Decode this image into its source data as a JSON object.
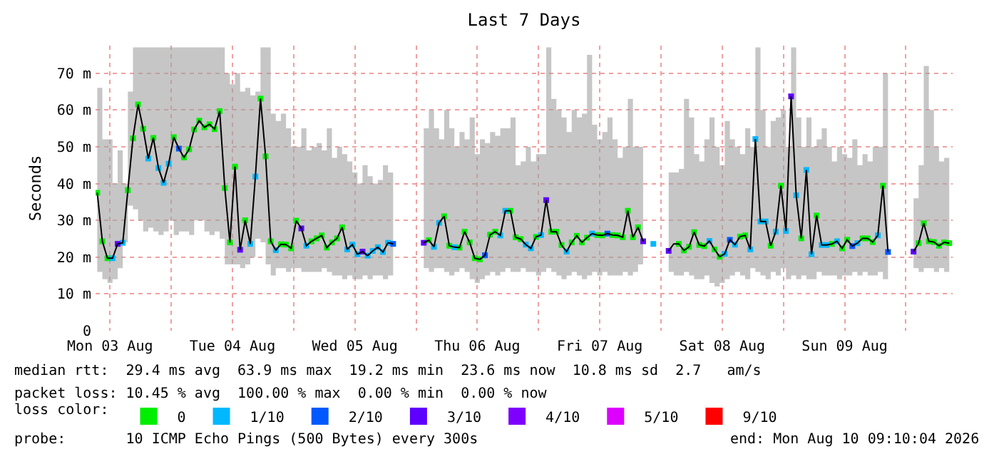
{
  "chart_data": {
    "type": "line",
    "title": "Last 7 Days",
    "ylabel": "Seconds",
    "legend_title": "loss color:",
    "x": [
      "2026-08-03T09:30",
      "2026-08-03T10:30",
      "2026-08-03T11:30",
      "2026-08-03T12:30",
      "2026-08-03T13:30",
      "2026-08-03T14:30",
      "2026-08-03T15:30",
      "2026-08-03T16:30",
      "2026-08-03T17:30",
      "2026-08-03T18:30",
      "2026-08-03T19:30",
      "2026-08-03T20:30",
      "2026-08-03T21:30",
      "2026-08-03T22:30",
      "2026-08-03T23:30",
      "2026-08-04T00:30",
      "2026-08-04T01:30",
      "2026-08-04T02:30",
      "2026-08-04T03:30",
      "2026-08-04T04:30",
      "2026-08-04T05:30",
      "2026-08-04T06:30",
      "2026-08-04T07:30",
      "2026-08-04T08:30",
      "2026-08-04T09:30",
      "2026-08-04T10:30",
      "2026-08-04T11:30",
      "2026-08-04T12:30",
      "2026-08-04T13:30",
      "2026-08-04T14:30",
      "2026-08-04T15:30",
      "2026-08-04T16:30",
      "2026-08-04T17:30",
      "2026-08-04T18:30",
      "2026-08-04T19:30",
      "2026-08-04T20:30",
      "2026-08-04T21:30",
      "2026-08-04T22:30",
      "2026-08-04T23:30",
      "2026-08-05T00:30",
      "2026-08-05T01:30",
      "2026-08-05T02:30",
      "2026-08-05T03:30",
      "2026-08-05T04:30",
      "2026-08-05T05:30",
      "2026-08-05T06:30",
      "2026-08-05T07:30",
      "2026-08-05T08:30",
      "2026-08-05T09:30",
      "2026-08-05T10:30",
      "2026-08-05T11:30",
      "2026-08-05T12:30",
      "2026-08-05T13:30",
      "2026-08-05T14:30",
      "2026-08-05T15:30",
      "2026-08-05T16:30",
      "2026-08-05T17:30",
      "2026-08-05T18:30",
      "2026-08-05T19:30",
      "2026-08-05T20:30",
      "2026-08-05T21:30",
      "2026-08-05T22:30",
      "2026-08-05T23:30",
      "2026-08-06T00:30",
      "2026-08-06T01:30",
      "2026-08-06T02:30",
      "2026-08-06T03:30",
      "2026-08-06T04:30",
      "2026-08-06T05:30",
      "2026-08-06T06:30",
      "2026-08-06T07:30",
      "2026-08-06T08:30",
      "2026-08-06T09:30",
      "2026-08-06T10:30",
      "2026-08-06T11:30",
      "2026-08-06T12:30",
      "2026-08-06T13:30",
      "2026-08-06T14:30",
      "2026-08-06T15:30",
      "2026-08-06T16:30",
      "2026-08-06T17:30",
      "2026-08-06T18:30",
      "2026-08-06T19:30",
      "2026-08-06T20:30",
      "2026-08-06T21:30",
      "2026-08-06T22:30",
      "2026-08-06T23:30",
      "2026-08-07T00:30",
      "2026-08-07T01:30",
      "2026-08-07T02:30",
      "2026-08-07T03:30",
      "2026-08-07T04:30",
      "2026-08-07T05:30",
      "2026-08-07T06:30",
      "2026-08-07T07:30",
      "2026-08-07T08:30",
      "2026-08-07T09:30",
      "2026-08-07T10:30",
      "2026-08-07T11:30",
      "2026-08-07T12:30",
      "2026-08-07T13:30",
      "2026-08-07T14:30",
      "2026-08-07T15:30",
      "2026-08-07T16:30",
      "2026-08-07T17:30",
      "2026-08-07T18:30",
      "2026-08-07T19:30",
      "2026-08-07T20:30",
      "2026-08-07T21:30",
      "2026-08-07T22:30",
      "2026-08-07T23:30",
      "2026-08-08T00:30",
      "2026-08-08T01:30",
      "2026-08-08T02:30",
      "2026-08-08T03:30",
      "2026-08-08T04:30",
      "2026-08-08T05:30",
      "2026-08-08T06:30",
      "2026-08-08T07:30",
      "2026-08-08T08:30",
      "2026-08-08T09:30",
      "2026-08-08T10:30",
      "2026-08-08T11:30",
      "2026-08-08T12:30",
      "2026-08-08T13:30",
      "2026-08-08T14:30",
      "2026-08-08T15:30",
      "2026-08-08T16:30",
      "2026-08-08T17:30",
      "2026-08-08T18:30",
      "2026-08-08T19:30",
      "2026-08-08T20:30",
      "2026-08-08T21:30",
      "2026-08-08T22:30",
      "2026-08-08T23:30",
      "2026-08-09T00:30",
      "2026-08-09T01:30",
      "2026-08-09T02:30",
      "2026-08-09T03:30",
      "2026-08-09T04:30",
      "2026-08-09T05:30",
      "2026-08-09T06:30",
      "2026-08-09T07:30",
      "2026-08-09T08:30",
      "2026-08-09T09:30",
      "2026-08-09T10:30",
      "2026-08-09T11:30",
      "2026-08-09T12:30",
      "2026-08-09T13:30",
      "2026-08-09T14:30",
      "2026-08-09T15:30",
      "2026-08-09T16:30",
      "2026-08-09T17:30",
      "2026-08-09T18:30",
      "2026-08-09T19:30",
      "2026-08-09T20:30",
      "2026-08-09T21:30",
      "2026-08-09T22:30",
      "2026-08-09T23:30",
      "2026-08-10T00:30",
      "2026-08-10T01:30",
      "2026-08-10T02:30",
      "2026-08-10T03:30",
      "2026-08-10T04:30",
      "2026-08-10T05:30",
      "2026-08-10T06:30",
      "2026-08-10T07:30",
      "2026-08-10T08:30"
    ],
    "xlim": [
      "2026-08-03T09:10",
      "2026-08-10T09:10"
    ],
    "xticks": [
      {
        "value": "2026-08-03T12:00",
        "label": "Mon 03 Aug"
      },
      {
        "value": "2026-08-04T00:00",
        "label": null
      },
      {
        "value": "2026-08-04T12:00",
        "label": "Tue 04 Aug"
      },
      {
        "value": "2026-08-05T00:00",
        "label": null
      },
      {
        "value": "2026-08-05T12:00",
        "label": "Wed 05 Aug"
      },
      {
        "value": "2026-08-06T00:00",
        "label": null
      },
      {
        "value": "2026-08-06T12:00",
        "label": "Thu 06 Aug"
      },
      {
        "value": "2026-08-07T00:00",
        "label": null
      },
      {
        "value": "2026-08-07T12:00",
        "label": "Fri 07 Aug"
      },
      {
        "value": "2026-08-08T00:00",
        "label": null
      },
      {
        "value": "2026-08-08T12:00",
        "label": "Sat 08 Aug"
      },
      {
        "value": "2026-08-09T00:00",
        "label": null
      },
      {
        "value": "2026-08-09T12:00",
        "label": "Sun 09 Aug"
      },
      {
        "value": "2026-08-10T00:00",
        "label": null
      }
    ],
    "ylim": [
      0,
      77.5
    ],
    "yticks": [
      0,
      {
        "value": 10,
        "label": "10 m"
      },
      {
        "value": 20,
        "label": "20 m"
      },
      {
        "value": 30,
        "label": "30 m"
      },
      {
        "value": 40,
        "label": "40 m"
      },
      {
        "value": 50,
        "label": "50 m"
      },
      {
        "value": 60,
        "label": "60 m"
      },
      {
        "value": 70,
        "label": "70 m"
      }
    ],
    "grid": true,
    "legend": "bottom",
    "marker": "square",
    "series": [
      {
        "color": "#000000",
        "marker": "none",
        "values": [
          37.5,
          24.3,
          19.7,
          19.7,
          23.6,
          23.9,
          38.2,
          52.3,
          61.5,
          54.9,
          46.8,
          52.4,
          44.2,
          40.2,
          45.4,
          52.6,
          49.5,
          47.1,
          49.3,
          54.7,
          57.1,
          55.3,
          56.1,
          54.8,
          59.7,
          38.8,
          24,
          44.6,
          22,
          30,
          23.6,
          41.9,
          63.1,
          47.4,
          24.3,
          21.9,
          23.5,
          23.4,
          22.4,
          29.9,
          27.8,
          23.1,
          24.3,
          25.1,
          25.9,
          22.6,
          24,
          25.1,
          28.1,
          22.1,
          23.4,
          20.8,
          21.5,
          20.4,
          21.7,
          22.7,
          21.4,
          23.9,
          23.6,
          null,
          null,
          null,
          null,
          null,
          23.9,
          24.6,
          22.8,
          29.3,
          31.1,
          23.1,
          22.7,
          22.6,
          26.9,
          24,
          19.7,
          19.4,
          20.5,
          26.1,
          26.9,
          25.9,
          32.6,
          32.6,
          25.4,
          24.9,
          23.4,
          22.4,
          25.5,
          26,
          35.5,
          26.9,
          26.9,
          23.3,
          21.5,
          24,
          25.8,
          24,
          25.3,
          26.4,
          26,
          25.9,
          26.4,
          26,
          25.9,
          25.4,
          32.6,
          25.4,
          28.1,
          24.3,
          null,
          null,
          null,
          null,
          21.7,
          23.6,
          23.6,
          21.8,
          22.8,
          26.8,
          23.3,
          23,
          24.4,
          22.1,
          20.1,
          20.9,
          24.7,
          23.4,
          25.6,
          25.9,
          22.1,
          52.1,
          29.7,
          29.7,
          23.1,
          26.9,
          39.4,
          27.1,
          63.7,
          36.8,
          25.1,
          43.7,
          20.8,
          31.3,
          23.3,
          23.3,
          23.6,
          24.3,
          22.4,
          24.7,
          23,
          23.8,
          25.1,
          25.1,
          24.1,
          25.9,
          39.4,
          21.4,
          null,
          null,
          null,
          null,
          21.5,
          23.8,
          29.2,
          24.3,
          24.1,
          23.1,
          24,
          23.8
        ],
        "upper": [
          66,
          52,
          52,
          40,
          49,
          40,
          65,
          77,
          77,
          77,
          77,
          77,
          77,
          77,
          77,
          77,
          77,
          77,
          77,
          77,
          77,
          77,
          77,
          77,
          77,
          70,
          67,
          70,
          65,
          66,
          64,
          65,
          77,
          77,
          59,
          57,
          59,
          55,
          50,
          50,
          55,
          49,
          50,
          51,
          49,
          55,
          47,
          50,
          48,
          46,
          43,
          40,
          45,
          42,
          40,
          41,
          45,
          43,
          42,
          null,
          null,
          null,
          null,
          null,
          55,
          60,
          55,
          52,
          60,
          55,
          50,
          54,
          52,
          58,
          48,
          52,
          51,
          54,
          53,
          55,
          55,
          58,
          45,
          46,
          50,
          46,
          48,
          48,
          77,
          63,
          60,
          58,
          54,
          60,
          58,
          59,
          75,
          56,
          52,
          54,
          58,
          52,
          47,
          50,
          63,
          50,
          50,
          40,
          null,
          null,
          null,
          null,
          43,
          43,
          44,
          63,
          58,
          48,
          46,
          52,
          58,
          50,
          45,
          57,
          52,
          50,
          48,
          55,
          50,
          77,
          60,
          50,
          57,
          58,
          60,
          50,
          77,
          58,
          50,
          58,
          50,
          52,
          55,
          50,
          46,
          50,
          48,
          47,
          52,
          45,
          48,
          46,
          50,
          50,
          70,
          36,
          null,
          null,
          null,
          null,
          36,
          45,
          72,
          60,
          50,
          46,
          47,
          49
        ],
        "lower": [
          18,
          16,
          14,
          13,
          14,
          17,
          24,
          34,
          33,
          30,
          27,
          28,
          27,
          26,
          27,
          30,
          26,
          27,
          27,
          26,
          30,
          30,
          27,
          26,
          27,
          25,
          18,
          18,
          18,
          17,
          18,
          20,
          25,
          24,
          18,
          15,
          17,
          17,
          16,
          17,
          17,
          16,
          16,
          16,
          16,
          17,
          16,
          15,
          15,
          14,
          15,
          14,
          14,
          15,
          14,
          15,
          15,
          14,
          15,
          null,
          null,
          null,
          null,
          null,
          18,
          17,
          16,
          17,
          17,
          16,
          15,
          16,
          17,
          16,
          14,
          13,
          14,
          15,
          16,
          15,
          16,
          17,
          16,
          16,
          17,
          16,
          16,
          15,
          16,
          17,
          16,
          15,
          14,
          15,
          16,
          15,
          14,
          15,
          16,
          15,
          16,
          15,
          15,
          15,
          16,
          15,
          16,
          18,
          null,
          null,
          null,
          null,
          17,
          16,
          15,
          15,
          16,
          15,
          14,
          14,
          15,
          13,
          12,
          13,
          14,
          15,
          16,
          15,
          14,
          17,
          16,
          15,
          14,
          16,
          15,
          17,
          14,
          15,
          14,
          15,
          14,
          14,
          16,
          15,
          15,
          15,
          14,
          15,
          15,
          16,
          15,
          16,
          15,
          15,
          16,
          14,
          null,
          null,
          null,
          null,
          18,
          17,
          16,
          17,
          17,
          16,
          17,
          16
        ]
      },
      {
        "type": "scatter",
        "name": "0",
        "color": "#00ee00",
        "values": [
          37.5,
          24.3,
          19.7,
          null,
          null,
          null,
          38.2,
          52.3,
          61.5,
          54.9,
          null,
          52.4,
          null,
          null,
          null,
          52.6,
          null,
          47.1,
          49.3,
          54.7,
          57.1,
          55.3,
          56.1,
          54.8,
          59.7,
          38.8,
          24,
          44.6,
          null,
          30,
          null,
          null,
          63.1,
          47.4,
          24.3,
          null,
          23.5,
          23.4,
          22.4,
          29.9,
          null,
          null,
          24.3,
          25.1,
          25.9,
          22.6,
          24,
          25.1,
          28.1,
          null,
          null,
          null,
          null,
          null,
          null,
          null,
          null,
          null,
          null,
          null,
          null,
          null,
          null,
          null,
          null,
          24.6,
          null,
          null,
          31.1,
          23.1,
          null,
          22.6,
          26.9,
          24,
          19.7,
          19.4,
          null,
          26.1,
          26.9,
          null,
          null,
          32.6,
          25.4,
          24.9,
          null,
          null,
          25.5,
          null,
          null,
          26.9,
          26.9,
          23.3,
          null,
          24,
          25.8,
          24,
          25.3,
          null,
          26,
          25.9,
          null,
          26,
          25.9,
          25.4,
          32.6,
          25.4,
          28.1,
          null,
          null,
          null,
          null,
          null,
          null,
          null,
          23.6,
          21.8,
          22.8,
          26.8,
          23.3,
          23,
          null,
          22.1,
          20.1,
          null,
          null,
          null,
          25.6,
          25.9,
          null,
          null,
          null,
          null,
          23.1,
          null,
          39.4,
          null,
          null,
          null,
          25.1,
          null,
          null,
          31.3,
          null,
          null,
          23.6,
          null,
          22.4,
          24.7,
          null,
          null,
          25.1,
          25.1,
          24.1,
          null,
          39.4,
          null,
          null,
          null,
          null,
          null,
          null,
          23.8,
          29.2,
          24.3,
          24.1,
          23.1,
          24,
          23.8
        ]
      },
      {
        "type": "scatter",
        "name": "1/10",
        "color": "#00b8ff",
        "values": [
          null,
          null,
          null,
          19.7,
          null,
          23.9,
          null,
          null,
          null,
          null,
          46.8,
          null,
          44.2,
          40.2,
          45.4,
          null,
          null,
          null,
          null,
          null,
          null,
          null,
          null,
          null,
          null,
          null,
          null,
          null,
          null,
          null,
          23.6,
          41.9,
          null,
          null,
          null,
          21.9,
          null,
          null,
          null,
          null,
          null,
          23.1,
          null,
          null,
          null,
          null,
          null,
          null,
          null,
          22.1,
          23.4,
          20.8,
          null,
          20.4,
          21.7,
          22.7,
          21.4,
          23.9,
          null,
          null,
          null,
          null,
          null,
          null,
          null,
          null,
          22.8,
          29.3,
          null,
          null,
          22.7,
          null,
          null,
          null,
          null,
          null,
          null,
          null,
          null,
          25.9,
          32.6,
          null,
          null,
          null,
          23.4,
          22.4,
          null,
          26,
          null,
          null,
          null,
          null,
          21.5,
          null,
          null,
          null,
          null,
          26.4,
          null,
          null,
          null,
          null,
          null,
          null,
          null,
          null,
          null,
          null,
          null,
          23.6,
          null,
          null,
          null,
          null,
          null,
          null,
          null,
          null,
          null,
          null,
          24.4,
          null,
          null,
          20.9,
          null,
          23.4,
          null,
          null,
          22.1,
          52.1,
          29.7,
          29.7,
          null,
          26.9,
          null,
          27.1,
          null,
          36.8,
          null,
          43.7,
          20.8,
          null,
          23.3,
          23.3,
          null,
          24.3,
          null,
          null,
          null,
          23.8,
          null,
          null,
          null,
          25.9,
          null,
          null,
          null,
          null,
          null,
          null,
          null,
          null,
          null,
          null,
          null,
          null,
          null,
          null
        ]
      },
      {
        "type": "scatter",
        "name": "2/10",
        "color": "#0059ff",
        "x": [
          "2026-08-04T01:30",
          "2026-08-05T19:30",
          "2026-08-06T13:30",
          "2026-08-07T13:30",
          "2026-08-08T13:30",
          "2026-08-09T13:30",
          "2026-08-09T20:30"
        ],
        "values": [
          49.5,
          23.6,
          20.5,
          26.4,
          24.7,
          23,
          21.4
        ]
      },
      {
        "type": "scatter",
        "name": "3/10",
        "color": "#5e00ff",
        "x": [
          "2026-08-03T13:30",
          "2026-08-04T13:30",
          "2026-08-05T01:30",
          "2026-08-05T13:30",
          "2026-08-06T01:30",
          "2026-08-07T01:30",
          "2026-08-07T20:30",
          "2026-08-08T01:30",
          "2026-08-09T01:30",
          "2026-08-10T01:30"
        ],
        "values": [
          23.6,
          22,
          27.8,
          21.5,
          23.9,
          35.5,
          24.3,
          21.7,
          63.7,
          21.5
        ]
      },
      {
        "type": "scatter",
        "name": "4/10",
        "color": "#7e00ff",
        "values": [
          null,
          null,
          null,
          null,
          null,
          null,
          null,
          null,
          null,
          null,
          null,
          null,
          null,
          null,
          null,
          null,
          null,
          null,
          null,
          null,
          null,
          null,
          null,
          null,
          null,
          null,
          null,
          null,
          null,
          null,
          null,
          null,
          null,
          null,
          null,
          null,
          null,
          null,
          null,
          null,
          null,
          null,
          null,
          null,
          null,
          null,
          null,
          null,
          null,
          null,
          null,
          null,
          null,
          null,
          null,
          null,
          null,
          null,
          null,
          null,
          null,
          null,
          null,
          null,
          null,
          null,
          null,
          null,
          null,
          null,
          null,
          null,
          null,
          null,
          null,
          null,
          null,
          null,
          null,
          null,
          null,
          null,
          null,
          null,
          null,
          null,
          null,
          null,
          null,
          null,
          null,
          null,
          null,
          null,
          null,
          null,
          null,
          null,
          null,
          null,
          null,
          null,
          null,
          null,
          null,
          null,
          null,
          null,
          null,
          null,
          null,
          null,
          null,
          null,
          null,
          null,
          null,
          null,
          null,
          null,
          null,
          null,
          null,
          null,
          null,
          null,
          null,
          null,
          null,
          null,
          null,
          null,
          null,
          null,
          null,
          null,
          null,
          null,
          null,
          null,
          null,
          null,
          null,
          null,
          null,
          null,
          null,
          null,
          null,
          null,
          null,
          null,
          null,
          null,
          null,
          null,
          null,
          null,
          null,
          null,
          null,
          null,
          null,
          null,
          null,
          null,
          null,
          null
        ]
      },
      {
        "type": "scatter",
        "name": "5/10",
        "color": "#dd00ff",
        "values": [
          null,
          null,
          null,
          null,
          null,
          null,
          null,
          null,
          null,
          null,
          null,
          null,
          null,
          null,
          null,
          null,
          null,
          null,
          null,
          null,
          null,
          null,
          null,
          null,
          null,
          null,
          null,
          null,
          null,
          null,
          null,
          null,
          null,
          null,
          null,
          null,
          null,
          null,
          null,
          null,
          null,
          null,
          null,
          null,
          null,
          null,
          null,
          null,
          null,
          null,
          null,
          null,
          null,
          null,
          null,
          null,
          null,
          null,
          null,
          null,
          null,
          null,
          null,
          null,
          null,
          null,
          null,
          null,
          null,
          null,
          null,
          null,
          null,
          null,
          null,
          null,
          null,
          null,
          null,
          null,
          null,
          null,
          null,
          null,
          null,
          null,
          null,
          null,
          null,
          null,
          null,
          null,
          null,
          null,
          null,
          null,
          null,
          null,
          null,
          null,
          null,
          null,
          null,
          null,
          null,
          null,
          null,
          null,
          null,
          null,
          null,
          null,
          null,
          null,
          null,
          null,
          null,
          null,
          null,
          null,
          null,
          null,
          null,
          null,
          null,
          null,
          null,
          null,
          null,
          null,
          null,
          null,
          null,
          null,
          null,
          null,
          null,
          null,
          null,
          null,
          null,
          null,
          null,
          null,
          null,
          null,
          null,
          null,
          null,
          null,
          null,
          null,
          null,
          null,
          null,
          null,
          null,
          null,
          null,
          null,
          null,
          null,
          null,
          null,
          null,
          null,
          null,
          null
        ]
      },
      {
        "type": "scatter",
        "name": "9/10",
        "color": "#ff0000",
        "values": [
          null,
          null,
          null,
          null,
          null,
          null,
          null,
          null,
          null,
          null,
          null,
          null,
          null,
          null,
          null,
          null,
          null,
          null,
          null,
          null,
          null,
          null,
          null,
          null,
          null,
          null,
          null,
          null,
          null,
          null,
          null,
          null,
          null,
          null,
          null,
          null,
          null,
          null,
          null,
          null,
          null,
          null,
          null,
          null,
          null,
          null,
          null,
          null,
          null,
          null,
          null,
          null,
          null,
          null,
          null,
          null,
          null,
          null,
          null,
          null,
          null,
          null,
          null,
          null,
          null,
          null,
          null,
          null,
          null,
          null,
          null,
          null,
          null,
          null,
          null,
          null,
          null,
          null,
          null,
          null,
          null,
          null,
          null,
          null,
          null,
          null,
          null,
          null,
          null,
          null,
          null,
          null,
          null,
          null,
          null,
          null,
          null,
          null,
          null,
          null,
          null,
          null,
          null,
          null,
          null,
          null,
          null,
          null,
          null,
          null,
          null,
          null,
          null,
          null,
          null,
          null,
          null,
          null,
          null,
          null,
          null,
          null,
          null,
          null,
          null,
          null,
          null,
          null,
          null,
          null,
          null,
          null,
          null,
          null,
          null,
          null,
          null,
          null,
          null,
          null,
          null,
          null,
          null,
          null,
          null,
          null,
          null,
          null,
          null,
          null,
          null,
          null,
          null,
          null,
          null,
          null,
          null,
          null,
          null,
          null,
          null,
          null,
          null,
          null,
          null,
          null,
          null,
          null
        ]
      }
    ],
    "annotations": [
      "median rtt:  29.4 ms avg  63.9 ms max  19.2 ms min  23.6 ms now  10.8 ms sd  2.7   am/s",
      "packet loss: 10.45 % avg  100.00 % max  0.00 % min  0.00 % now",
      "probe:       10 ICMP Echo Pings (500 Bytes) every 300s",
      "end: Mon Aug 10 09:10:04 2026"
    ]
  }
}
